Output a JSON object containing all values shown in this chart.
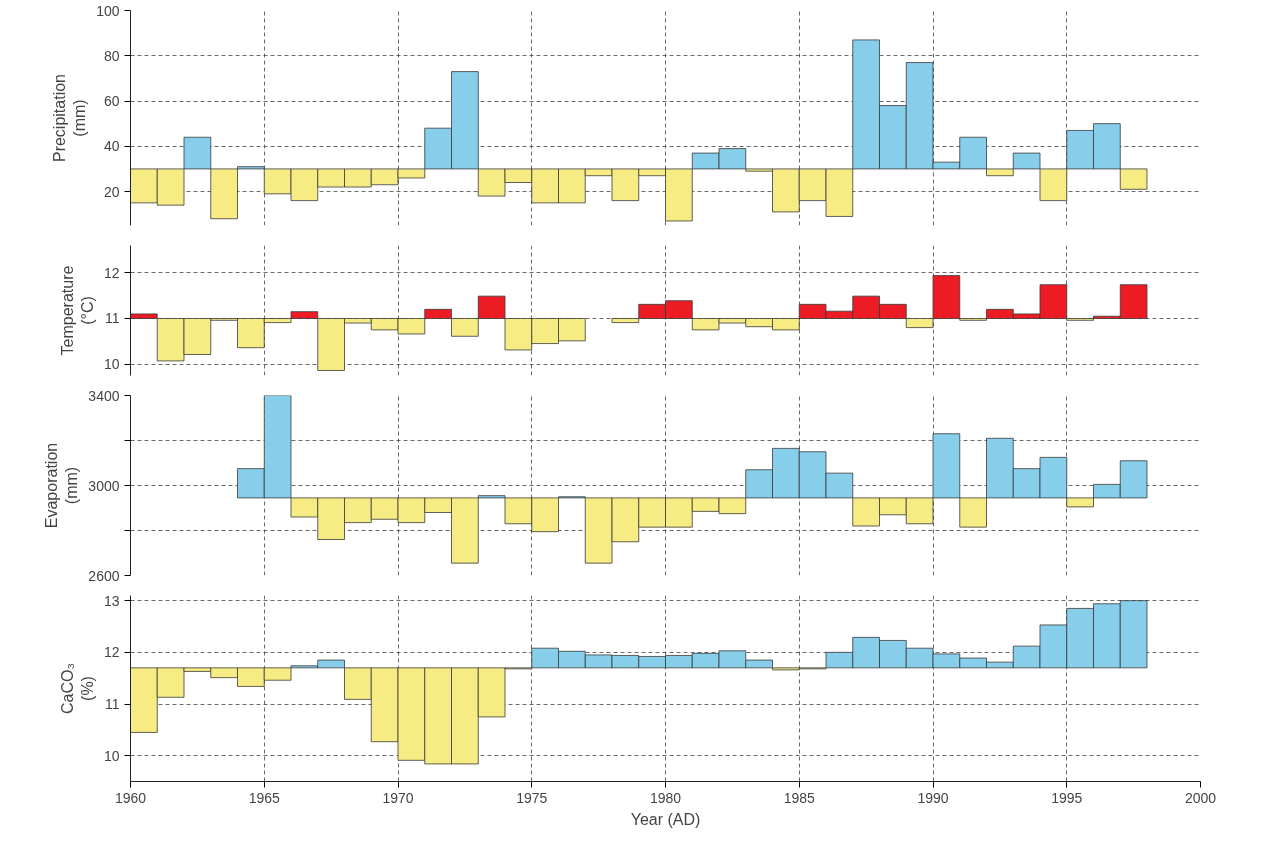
{
  "chart_data": [
    {
      "type": "bar",
      "ylabel": "Precipitation\n(mm)",
      "x": [
        1960.5,
        1961.5,
        1962.5,
        1963.5,
        1964.5,
        1965.5,
        1966.5,
        1967.5,
        1968.5,
        1969.5,
        1970.5,
        1971.5,
        1972.5,
        1973.5,
        1974.5,
        1975.5,
        1976.5,
        1977.5,
        1978.5,
        1979.5,
        1980.5,
        1981.5,
        1982.5,
        1983.5,
        1984.5,
        1985.5,
        1986.5,
        1987.5,
        1988.5,
        1989.5,
        1990.5,
        1991.5,
        1992.5,
        1993.5,
        1994.5,
        1995.5,
        1996.5,
        1997.5
      ],
      "base": [
        30,
        30,
        30,
        30,
        30,
        30,
        30,
        30,
        30,
        30,
        30,
        30,
        30,
        30,
        30,
        30,
        30,
        30,
        30,
        30,
        30,
        30,
        30,
        30,
        30,
        30,
        30,
        30,
        30,
        30,
        30,
        30,
        30,
        30,
        30,
        30,
        30,
        30
      ],
      "values": [
        -15,
        -16,
        14,
        -22,
        1,
        -11,
        -14,
        -8,
        -8,
        -7,
        -4,
        18,
        43,
        -12,
        -6,
        -15,
        -15,
        -3,
        -14,
        -3,
        -23,
        7,
        9,
        -1,
        -19,
        -14,
        -21,
        57,
        28,
        47,
        3,
        14,
        -3,
        7,
        -14,
        17,
        20,
        -9
      ],
      "colors": [
        "#f7ec84",
        "#f7ec84",
        "#87ceeb",
        "#f7ec84",
        "#87ceeb",
        "#f7ec84",
        "#f7ec84",
        "#f7ec84",
        "#f7ec84",
        "#f7ec84",
        "#f7ec84",
        "#87ceeb",
        "#87ceeb",
        "#f7ec84",
        "#f7ec84",
        "#f7ec84",
        "#f7ec84",
        "#f7ec84",
        "#f7ec84",
        "#f7ec84",
        "#f7ec84",
        "#87ceeb",
        "#87ceeb",
        "#f7ec84",
        "#f7ec84",
        "#f7ec84",
        "#f7ec84",
        "#87ceeb",
        "#87ceeb",
        "#87ceeb",
        "#87ceeb",
        "#87ceeb",
        "#f7ec84",
        "#87ceeb",
        "#f7ec84",
        "#87ceeb",
        "#87ceeb",
        "#f7ec84"
      ],
      "xlim": [
        1960,
        2000
      ],
      "xticks": [
        1960,
        1965,
        1970,
        1975,
        1980,
        1985,
        1990,
        1995,
        2000
      ],
      "ylim": [
        5,
        100
      ],
      "yticks": [
        20,
        40,
        60,
        80,
        100
      ],
      "grid": true,
      "tick_labels": "y"
    },
    {
      "type": "bar",
      "ylabel": "Temperature\n(°C)",
      "x": [
        1960.5,
        1961.5,
        1962.5,
        1963.5,
        1964.5,
        1965.5,
        1966.5,
        1967.5,
        1968.5,
        1969.5,
        1970.5,
        1971.5,
        1972.5,
        1973.5,
        1974.5,
        1975.5,
        1976.5,
        1977.5,
        1978.5,
        1979.5,
        1980.5,
        1981.5,
        1982.5,
        1983.5,
        1984.5,
        1985.5,
        1986.5,
        1987.5,
        1988.5,
        1989.5,
        1990.5,
        1991.5,
        1992.5,
        1993.5,
        1994.5,
        1995.5,
        1996.5,
        1997.5
      ],
      "base": [
        11,
        11,
        11,
        11,
        11,
        11,
        11,
        11,
        11,
        11,
        11,
        11,
        11,
        11,
        11,
        11,
        11,
        null,
        11,
        11,
        11,
        11,
        11,
        11,
        11,
        11,
        11,
        11,
        11,
        11,
        11,
        11,
        11,
        11,
        11,
        11,
        11,
        11
      ],
      "values": [
        0.1,
        -0.93,
        -0.79,
        -0.04,
        -0.64,
        -0.09,
        0.15,
        -1.14,
        -0.1,
        -0.25,
        -0.34,
        0.2,
        -0.39,
        0.49,
        -0.69,
        -0.55,
        -0.49,
        null,
        -0.09,
        0.31,
        0.39,
        -0.25,
        -0.1,
        -0.18,
        -0.25,
        0.31,
        0.16,
        0.49,
        0.31,
        -0.2,
        0.94,
        -0.04,
        0.2,
        0.1,
        0.74,
        -0.04,
        0.05,
        0.74
      ],
      "colors": [
        "#ed1c24",
        "#f7ec84",
        "#f7ec84",
        "#f7ec84",
        "#f7ec84",
        "#f7ec84",
        "#ed1c24",
        "#f7ec84",
        "#f7ec84",
        "#f7ec84",
        "#f7ec84",
        "#ed1c24",
        "#f7ec84",
        "#ed1c24",
        "#f7ec84",
        "#f7ec84",
        "#f7ec84",
        "#f7ec84",
        "#f7ec84",
        "#ed1c24",
        "#ed1c24",
        "#f7ec84",
        "#f7ec84",
        "#f7ec84",
        "#f7ec84",
        "#ed1c24",
        "#ed1c24",
        "#ed1c24",
        "#ed1c24",
        "#f7ec84",
        "#ed1c24",
        "#f7ec84",
        "#ed1c24",
        "#ed1c24",
        "#ed1c24",
        "#f7ec84",
        "#ed1c24",
        "#ed1c24"
      ],
      "xlim": [
        1960,
        2000
      ],
      "xticks": [
        1960,
        1965,
        1970,
        1975,
        1980,
        1985,
        1990,
        1995,
        2000
      ],
      "ylim": [
        9.75,
        12.6
      ],
      "yticks": [
        10,
        11,
        12
      ],
      "grid": true,
      "tick_labels": "y"
    },
    {
      "type": "bar",
      "ylabel": "Evaporation\n(mm)",
      "x": [
        1964.5,
        1965.5,
        1966.5,
        1967.5,
        1968.5,
        1969.5,
        1970.5,
        1971.5,
        1972.5,
        1973.5,
        1974.5,
        1975.5,
        1976.5,
        1977.5,
        1978.5,
        1979.5,
        1980.5,
        1981.5,
        1982.5,
        1983.5,
        1984.5,
        1985.5,
        1986.5,
        1987.5,
        1988.5,
        1989.5,
        1990.5,
        1991.5,
        1992.5,
        1993.5,
        1994.5,
        1995.5,
        1996.5,
        1997.5
      ],
      "base": [
        2945,
        2945,
        2945,
        2945,
        2945,
        2945,
        2945,
        2945,
        2945,
        2945,
        2945,
        2945,
        2945,
        2945,
        2945,
        2945,
        2945,
        2945,
        2945,
        2945,
        2945,
        2945,
        2945,
        2945,
        2945,
        2945,
        2945,
        2945,
        2945,
        2945,
        2945,
        2945,
        2945,
        2945
      ],
      "values": [
        130,
        455,
        -85,
        -185,
        -110,
        -95,
        -110,
        -65,
        -290,
        10,
        -115,
        -150,
        5,
        -290,
        -195,
        -130,
        -130,
        -60,
        -70,
        125,
        220,
        205,
        110,
        -125,
        -75,
        -115,
        285,
        -130,
        265,
        130,
        180,
        -40,
        60,
        165
      ],
      "colors": [
        "#87ceeb",
        "#87ceeb",
        "#f7ec84",
        "#f7ec84",
        "#f7ec84",
        "#f7ec84",
        "#f7ec84",
        "#f7ec84",
        "#f7ec84",
        "#87ceeb",
        "#f7ec84",
        "#f7ec84",
        "#87ceeb",
        "#f7ec84",
        "#f7ec84",
        "#f7ec84",
        "#f7ec84",
        "#f7ec84",
        "#f7ec84",
        "#87ceeb",
        "#87ceeb",
        "#87ceeb",
        "#87ceeb",
        "#f7ec84",
        "#f7ec84",
        "#f7ec84",
        "#87ceeb",
        "#f7ec84",
        "#87ceeb",
        "#87ceeb",
        "#87ceeb",
        "#f7ec84",
        "#87ceeb",
        "#87ceeb"
      ],
      "xlim": [
        1960,
        2000
      ],
      "xticks": [
        1960,
        1965,
        1970,
        1975,
        1980,
        1985,
        1990,
        1995,
        2000
      ],
      "ylim": [
        2600,
        3400
      ],
      "yticks": [
        2600,
        {
          "value": 2800,
          "label": null
        },
        3000,
        {
          "value": 3200,
          "label": null
        },
        3400
      ],
      "grid": true,
      "tick_labels": "y"
    },
    {
      "type": "bar",
      "ylabel": "CaCO₃\n(%)",
      "xlabel": "Year (AD)",
      "x": [
        1960.5,
        1961.5,
        1962.5,
        1963.5,
        1964.5,
        1965.5,
        1966.5,
        1967.5,
        1968.5,
        1969.5,
        1970.5,
        1971.5,
        1972.5,
        1973.5,
        1974.5,
        1975.5,
        1976.5,
        1977.5,
        1978.5,
        1979.5,
        1980.5,
        1981.5,
        1982.5,
        1983.5,
        1984.5,
        1985.5,
        1986.5,
        1987.5,
        1988.5,
        1989.5,
        1990.5,
        1991.5,
        1992.5,
        1993.5,
        1994.5,
        1995.5,
        1996.5,
        1997.5
      ],
      "base": [
        11.7,
        11.7,
        11.7,
        11.7,
        11.7,
        11.7,
        11.7,
        11.7,
        11.7,
        11.7,
        11.7,
        11.7,
        11.7,
        11.7,
        11.7,
        11.7,
        11.7,
        11.7,
        11.7,
        11.7,
        11.7,
        11.7,
        11.7,
        11.7,
        11.7,
        11.7,
        11.7,
        11.7,
        11.7,
        11.7,
        11.7,
        11.7,
        11.7,
        11.7,
        11.7,
        11.7,
        11.7,
        11.7
      ],
      "values": [
        -1.25,
        -0.57,
        -0.07,
        -0.19,
        -0.36,
        -0.24,
        0.04,
        0.15,
        -0.61,
        -1.43,
        -1.79,
        -1.86,
        -1.86,
        -0.95,
        -0.02,
        0.38,
        0.32,
        0.25,
        0.24,
        0.22,
        0.24,
        0.28,
        0.33,
        0.15,
        -0.04,
        -0.02,
        0.3,
        0.59,
        0.53,
        0.38,
        0.27,
        0.19,
        0.11,
        0.42,
        0.83,
        1.15,
        1.24,
        1.3
      ],
      "colors": [
        "#f7ec84",
        "#f7ec84",
        "#f7ec84",
        "#f7ec84",
        "#f7ec84",
        "#f7ec84",
        "#87ceeb",
        "#87ceeb",
        "#f7ec84",
        "#f7ec84",
        "#f7ec84",
        "#f7ec84",
        "#f7ec84",
        "#f7ec84",
        "#f7ec84",
        "#87ceeb",
        "#87ceeb",
        "#87ceeb",
        "#87ceeb",
        "#87ceeb",
        "#87ceeb",
        "#87ceeb",
        "#87ceeb",
        "#87ceeb",
        "#f7ec84",
        "#f7ec84",
        "#87ceeb",
        "#87ceeb",
        "#87ceeb",
        "#87ceeb",
        "#87ceeb",
        "#87ceeb",
        "#87ceeb",
        "#87ceeb",
        "#87ceeb",
        "#87ceeb",
        "#87ceeb",
        "#87ceeb"
      ],
      "xlim": [
        1960,
        2000
      ],
      "xticks": [
        1960,
        1965,
        1970,
        1975,
        1980,
        1985,
        1990,
        1995,
        2000
      ],
      "ylim": [
        9.5,
        13.1
      ],
      "yticks": [
        10,
        11,
        12,
        13
      ],
      "grid": true
    }
  ]
}
